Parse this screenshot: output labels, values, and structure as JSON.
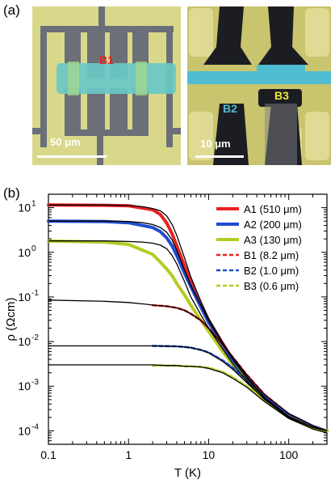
{
  "panel_a": {
    "label": "(a)",
    "left_image": {
      "sample_label": "B1",
      "scale_bar": "50 μm"
    },
    "right_image": {
      "sample_labels": [
        "B2",
        "B3"
      ],
      "scale_bar": "10 μm"
    }
  },
  "panel_b": {
    "label": "(b)"
  },
  "chart_data": {
    "type": "line",
    "xlabel": "T (K)",
    "ylabel": "ρ (Ωcm)",
    "xscale": "log",
    "yscale": "log",
    "xlim": [
      0.1,
      300
    ],
    "ylim": [
      5e-05,
      20
    ],
    "x_ticks": [
      "0.1",
      "1",
      "10",
      "100"
    ],
    "y_ticks": [
      "10-4",
      "10-3",
      "10-2",
      "10-1",
      "100",
      "101"
    ],
    "legend_position": "top-right",
    "series": [
      {
        "name": "A1 (510 μm)",
        "color": "#e8211f",
        "style": "solid",
        "x": [
          0.1,
          0.5,
          1,
          2,
          2.5,
          3,
          3.5,
          4,
          5,
          6,
          8,
          10,
          15,
          20,
          30,
          50,
          100,
          200,
          300
        ],
        "y": [
          11.5,
          11.3,
          11.0,
          9.0,
          7.0,
          4.5,
          2.6,
          1.4,
          0.5,
          0.22,
          0.07,
          0.03,
          0.009,
          0.004,
          0.0015,
          0.00055,
          0.00021,
          0.00012,
          0.0001
        ]
      },
      {
        "name": "A2 (200 μm)",
        "color": "#1f4ccf",
        "style": "solid",
        "x": [
          0.1,
          0.5,
          1,
          2,
          2.5,
          3,
          3.5,
          4,
          5,
          6,
          8,
          10,
          15,
          20,
          30,
          50,
          100,
          200,
          300
        ],
        "y": [
          5.0,
          4.9,
          4.6,
          3.6,
          2.9,
          2.1,
          1.4,
          0.85,
          0.34,
          0.17,
          0.06,
          0.027,
          0.0085,
          0.0038,
          0.0015,
          0.00055,
          0.00021,
          0.00012,
          0.0001
        ]
      },
      {
        "name": "A3 (130 μm)",
        "color": "#b5cc24",
        "style": "solid",
        "x": [
          0.1,
          0.5,
          1,
          2,
          2.5,
          3,
          3.5,
          4,
          5,
          6,
          8,
          10,
          15,
          20,
          30,
          50,
          100,
          200,
          300
        ],
        "y": [
          1.8,
          1.7,
          1.5,
          0.9,
          0.6,
          0.42,
          0.3,
          0.2,
          0.11,
          0.065,
          0.03,
          0.017,
          0.006,
          0.003,
          0.0013,
          0.0005,
          0.0002,
          0.00012,
          0.0001
        ]
      },
      {
        "name": "B1 (8.2 μm)",
        "color": "#e8211f",
        "style": "dashed",
        "x": [
          2,
          3,
          4,
          5,
          6,
          8,
          10,
          15,
          20,
          30,
          50,
          100,
          200,
          300
        ],
        "y": [
          0.065,
          0.062,
          0.057,
          0.05,
          0.042,
          0.03,
          0.02,
          0.0085,
          0.0045,
          0.0018,
          0.00065,
          0.00024,
          0.00013,
          0.0001
        ]
      },
      {
        "name": "B2 (1.0 μm)",
        "color": "#1f4ccf",
        "style": "dashed",
        "x": [
          2,
          3,
          4,
          5,
          6,
          8,
          10,
          15,
          20,
          30,
          50,
          100,
          200,
          300
        ],
        "y": [
          0.008,
          0.0079,
          0.0078,
          0.0076,
          0.0073,
          0.0065,
          0.0057,
          0.0038,
          0.0026,
          0.0014,
          0.0006,
          0.00024,
          0.00013,
          0.0001
        ]
      },
      {
        "name": "B3 (0.6 μm)",
        "color": "#b5cc24",
        "style": "dashed",
        "x": [
          2,
          3,
          4,
          5,
          6,
          8,
          10,
          15,
          20,
          30,
          50,
          100,
          200,
          300
        ],
        "y": [
          0.0029,
          0.0029,
          0.0029,
          0.0028,
          0.0028,
          0.0027,
          0.0026,
          0.0021,
          0.0016,
          0.001,
          0.00048,
          0.0002,
          0.00012,
          0.0001
        ]
      }
    ],
    "fits": [
      {
        "color": "#000000",
        "x": [
          0.1,
          0.5,
          1,
          1.5,
          2,
          2.5,
          3,
          3.5,
          4,
          5,
          6,
          8,
          10,
          15,
          20,
          30,
          50,
          100,
          200,
          300
        ],
        "y": [
          11.5,
          11.5,
          11.2,
          10.5,
          9.6,
          8.5,
          6.5,
          4.2,
          2.4,
          0.75,
          0.28,
          0.08,
          0.033,
          0.0095,
          0.0042,
          0.0016,
          0.00056,
          0.00021,
          0.00012,
          0.0001
        ]
      },
      {
        "color": "#000000",
        "x": [
          0.1,
          0.5,
          1,
          1.5,
          2,
          2.5,
          3,
          3.5,
          4,
          5,
          6,
          8,
          10,
          15,
          20,
          30,
          50,
          100,
          200,
          300
        ],
        "y": [
          5.0,
          5.0,
          4.9,
          4.6,
          4.2,
          3.6,
          2.8,
          1.9,
          1.1,
          0.4,
          0.18,
          0.065,
          0.029,
          0.009,
          0.004,
          0.0015,
          0.00055,
          0.00021,
          0.00012,
          0.0001
        ]
      },
      {
        "color": "#000000",
        "x": [
          0.1,
          0.5,
          1,
          1.5,
          2,
          2.5,
          3,
          3.5,
          4,
          5,
          6,
          8,
          10,
          15,
          20,
          30,
          50,
          100,
          200,
          300
        ],
        "y": [
          1.8,
          1.8,
          1.75,
          1.7,
          1.6,
          1.45,
          1.2,
          0.85,
          0.55,
          0.22,
          0.1,
          0.04,
          0.02,
          0.0068,
          0.0032,
          0.0013,
          0.0005,
          0.0002,
          0.00012,
          0.0001
        ]
      },
      {
        "color": "#000000",
        "x": [
          0.1,
          0.5,
          1,
          1.5,
          2,
          3,
          4,
          5,
          6,
          8,
          10,
          15,
          20,
          30,
          50,
          100,
          200,
          300
        ],
        "y": [
          0.085,
          0.08,
          0.075,
          0.07,
          0.066,
          0.062,
          0.057,
          0.05,
          0.042,
          0.03,
          0.02,
          0.0085,
          0.0045,
          0.0018,
          0.00065,
          0.00024,
          0.00013,
          0.0001
        ]
      },
      {
        "color": "#000000",
        "x": [
          0.1,
          0.5,
          1,
          2,
          3,
          4,
          5,
          6,
          8,
          10,
          15,
          20,
          30,
          50,
          100,
          200,
          300
        ],
        "y": [
          0.008,
          0.008,
          0.008,
          0.008,
          0.0079,
          0.0078,
          0.0076,
          0.0073,
          0.0065,
          0.0056,
          0.0036,
          0.0024,
          0.0012,
          0.00052,
          0.0002,
          0.00012,
          0.0001
        ]
      },
      {
        "color": "#000000",
        "x": [
          0.1,
          0.5,
          1,
          2,
          3,
          4,
          5,
          6,
          8,
          10,
          15,
          20,
          30,
          50,
          100,
          200,
          300
        ],
        "y": [
          0.003,
          0.003,
          0.003,
          0.003,
          0.0029,
          0.0029,
          0.0028,
          0.0028,
          0.0027,
          0.0025,
          0.002,
          0.0015,
          0.00095,
          0.00045,
          0.00019,
          0.00011,
          9e-05
        ]
      }
    ]
  }
}
